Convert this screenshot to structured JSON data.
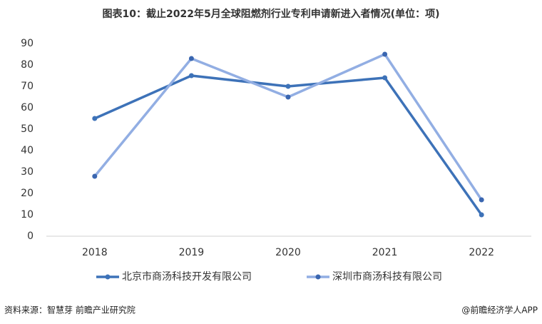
{
  "chart_data": {
    "type": "line",
    "title": "图表10：截止2022年5月全球阻燃剂行业专利申请新进入者情况(单位：项)",
    "categories": [
      "2018",
      "2019",
      "2020",
      "2021",
      "2022"
    ],
    "series": [
      {
        "name": "北京市商汤科技开发有限公司",
        "color": "#3d72b8",
        "marker_color": "#3d72b8",
        "values": [
          55,
          75,
          70,
          74,
          10
        ]
      },
      {
        "name": "深圳市商汤科技有限公司",
        "color": "#92aee3",
        "marker_color": "#3a66b0",
        "values": [
          28,
          83,
          65,
          85,
          17
        ]
      }
    ],
    "ylim": [
      0,
      90
    ],
    "yticks": [
      0,
      10,
      20,
      30,
      40,
      50,
      60,
      70,
      80,
      90
    ],
    "grid": false,
    "legend": "bottom",
    "source": "资料来源：智慧芽 前瞻产业研究院",
    "credit": "@前瞻经济学人APP"
  }
}
